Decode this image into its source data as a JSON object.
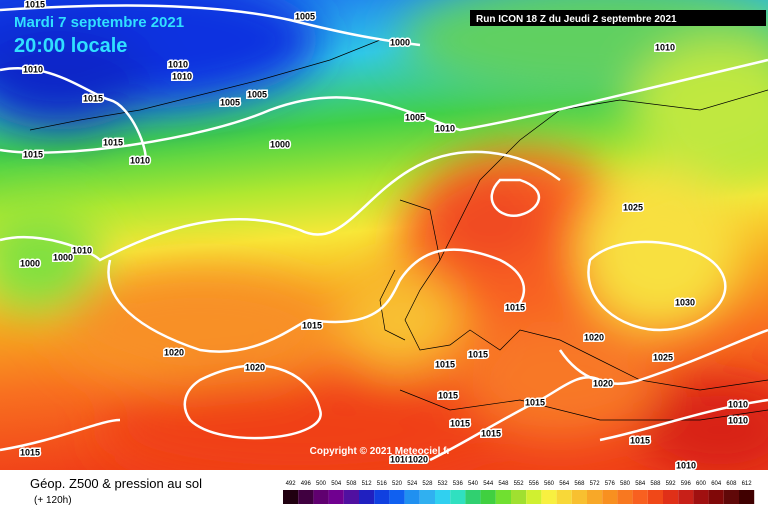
{
  "header": {
    "date": "Mardi 7 septembre 2021",
    "time": "20:00 locale",
    "run": "Run ICON 18 Z du Jeudi 2 septembre 2021"
  },
  "copyright": "Copyright © 2021 Meteociel.fr",
  "isobar_labels": [
    "1015",
    "1005",
    "1000",
    "1010",
    "1010",
    "1010",
    "1010",
    "1015",
    "1005",
    "1005",
    "1005",
    "1010",
    "1015",
    "1000",
    "1015",
    "1010",
    "1025",
    "1010",
    "1000",
    "1000",
    "1030",
    "1015",
    "1015",
    "1020",
    "1020",
    "1015",
    "1015",
    "1025",
    "1020",
    "1020",
    "1015",
    "1015",
    "1010",
    "1015",
    "1010",
    "1015",
    "1015",
    "1010",
    "1020",
    "1015",
    "1010"
  ],
  "legend": {
    "title": "Géop. Z500 & pression au sol",
    "subtitle": "(+ 120h)",
    "scale": [
      492,
      496,
      500,
      504,
      508,
      512,
      516,
      520,
      524,
      528,
      532,
      536,
      540,
      544,
      548,
      552,
      556,
      560,
      564,
      568,
      572,
      576,
      580,
      584,
      588,
      592,
      596,
      600,
      604,
      608,
      612
    ]
  }
}
